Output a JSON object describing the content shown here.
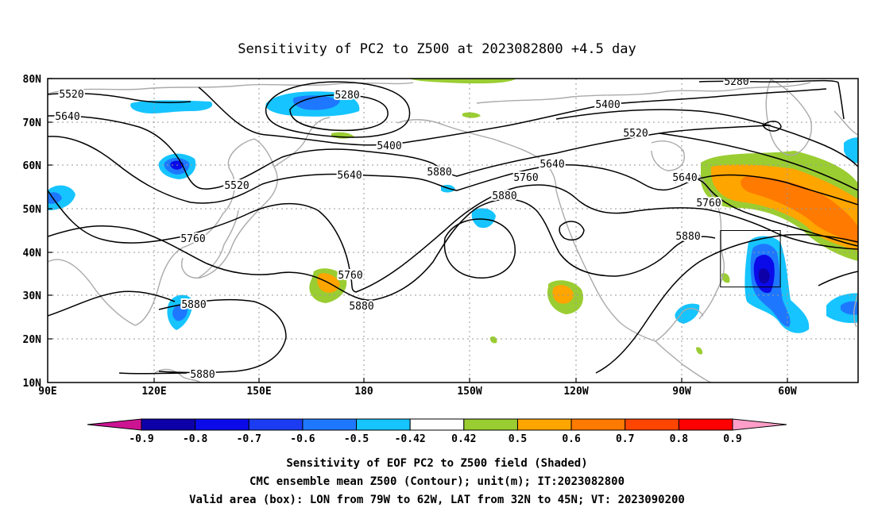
{
  "title": "Sensitivity of PC2 to Z500 at 2023082800 +4.5 day",
  "lat_ticks": [
    "80N",
    "70N",
    "60N",
    "50N",
    "40N",
    "30N",
    "20N",
    "10N"
  ],
  "lon_ticks": [
    "90E",
    "120E",
    "150E",
    "180",
    "150W",
    "120W",
    "90W",
    "60W"
  ],
  "contour_labels": [
    "5520",
    "5640",
    "5280",
    "5400",
    "5520",
    "5280",
    "5400",
    "5520",
    "5640",
    "5760",
    "5880",
    "5640",
    "5760",
    "5880",
    "5640",
    "5760",
    "5880",
    "5880",
    "5880",
    "5760",
    "5880"
  ],
  "colorbar": {
    "labels": [
      "-0.9",
      "-0.8",
      "-0.7",
      "-0.6",
      "-0.5",
      "-0.42",
      "0.42",
      "0.5",
      "0.6",
      "0.7",
      "0.8",
      "0.9"
    ],
    "colors": [
      "#0d00a8",
      "#0a0be8",
      "#1c3cf2",
      "#1e78ff",
      "#16c4ff",
      "#ffffff",
      "#9acd32",
      "#ffa500",
      "#ff7a00",
      "#ff4500",
      "#ff0000"
    ],
    "low_end_color": "#cc1493",
    "high_end_color": "#ff9ec8"
  },
  "captions": [
    "Sensitivity of EOF PC2 to Z500 field (Shaded)",
    "CMC ensemble mean Z500 (Contour); unit(m); IT:2023082800",
    "Valid area (box): LON from 79W to 62W, LAT from 32N to 45N; VT: 2023090200"
  ],
  "valid_area": {
    "lon_min": -79,
    "lon_max": -62,
    "lat_min": 32,
    "lat_max": 45
  }
}
